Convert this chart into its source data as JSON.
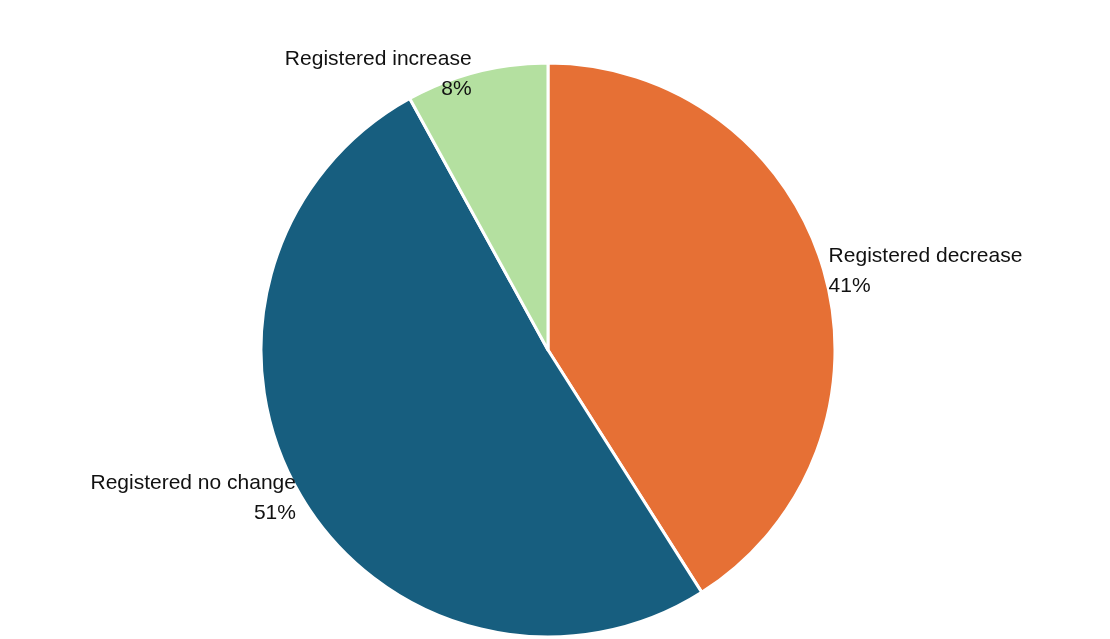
{
  "chart_data": {
    "type": "pie",
    "categories": [
      "Registered decrease",
      "Registered no change",
      "Registered increase"
    ],
    "values": [
      41,
      51,
      8
    ],
    "value_labels": [
      "41%",
      "51%",
      "8%"
    ],
    "colors": [
      "#e67035",
      "#175e7f",
      "#b4e0a0"
    ],
    "legend": false
  }
}
